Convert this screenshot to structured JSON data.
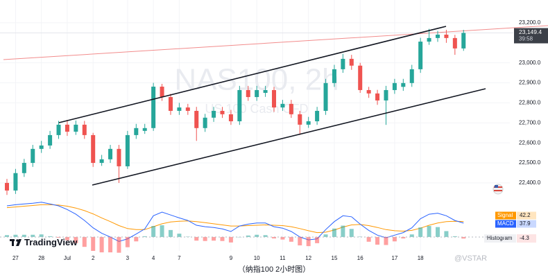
{
  "branding": "TradingView",
  "caption": "（纳指100 2小时图）",
  "watermark": "@VSTAR",
  "chart_data": [
    {
      "type": "candlestick",
      "title": "NAS100, 2h",
      "subtitle": "US 100 Cash CFD",
      "categories": [
        null,
        "27",
        null,
        null,
        "28",
        null,
        null,
        "Jul",
        null,
        null,
        "2",
        null,
        null,
        null,
        "3",
        null,
        null,
        "4",
        null,
        null,
        "7",
        null,
        null,
        null,
        null,
        null,
        "9",
        null,
        null,
        "10",
        null,
        null,
        "11",
        null,
        null,
        "12",
        null,
        null,
        "15",
        null,
        null,
        "16",
        null,
        null,
        null,
        "17",
        null,
        null,
        "18",
        null,
        null,
        null,
        null,
        null
      ],
      "open": [
        22400,
        22362,
        22449,
        22500,
        22570,
        22587,
        22639,
        22691,
        22656,
        22691,
        22639,
        22500,
        22518,
        22570,
        22483,
        22639,
        22660,
        22674,
        22881,
        22829,
        22760,
        22777,
        22760,
        22674,
        22726,
        22760,
        22743,
        22708,
        22864,
        22829,
        22850,
        22864,
        22777,
        22795,
        22743,
        22691,
        22708,
        22760,
        22899,
        22968,
        23020,
        22986,
        22864,
        22847,
        22812,
        22864,
        22880,
        22899,
        22968,
        23106,
        23124,
        23141,
        23124,
        23072
      ],
      "high": [
        22420,
        22470,
        22520,
        22590,
        22610,
        22660,
        22710,
        22715,
        22712,
        22710,
        22650,
        22540,
        22590,
        22590,
        22660,
        22695,
        22695,
        22900,
        22895,
        22845,
        22800,
        22795,
        22780,
        22745,
        22780,
        22780,
        22765,
        22885,
        22885,
        22885,
        22885,
        22880,
        22815,
        22815,
        22760,
        22730,
        22780,
        22920,
        22990,
        23045,
        23040,
        23000,
        22880,
        22865,
        22885,
        22920,
        22920,
        22990,
        23125,
        23170,
        23160,
        23165,
        23140,
        23165
      ],
      "low": [
        22340,
        22345,
        22430,
        22480,
        22550,
        22570,
        22620,
        22635,
        22640,
        22620,
        22480,
        22485,
        22500,
        22400,
        22470,
        22620,
        22645,
        22660,
        22810,
        22740,
        22740,
        22740,
        22610,
        22655,
        22705,
        22725,
        22690,
        22690,
        22810,
        22810,
        22830,
        22755,
        22760,
        22725,
        22640,
        22675,
        22690,
        22740,
        22880,
        22950,
        22965,
        22850,
        22825,
        22790,
        22690,
        22845,
        22860,
        22880,
        22950,
        23090,
        23105,
        23100,
        23040,
        23060
      ],
      "close": [
        22362,
        22449,
        22500,
        22570,
        22587,
        22639,
        22691,
        22656,
        22691,
        22639,
        22500,
        22518,
        22570,
        22483,
        22639,
        22674,
        22674,
        22881,
        22829,
        22760,
        22777,
        22760,
        22674,
        22726,
        22760,
        22743,
        22708,
        22864,
        22829,
        22864,
        22864,
        22777,
        22795,
        22743,
        22691,
        22708,
        22760,
        22899,
        22968,
        23020,
        22986,
        22864,
        22847,
        22812,
        22864,
        22899,
        22899,
        22968,
        23106,
        23124,
        23141,
        23124,
        23072,
        23149.4
      ],
      "up_color": "#26a69a",
      "down_color": "#ef5350",
      "ylim": [
        22327,
        23314
      ],
      "yticks": [
        {
          "value": 23200,
          "label": "23,200.0"
        },
        {
          "value": 23000,
          "label": "23,000.0"
        },
        {
          "value": 22900,
          "label": "22,900.0"
        },
        {
          "value": 22800,
          "label": "22,800.0"
        },
        {
          "value": 22700,
          "label": "22,700.0"
        },
        {
          "value": 22600,
          "label": "22,600.0"
        },
        {
          "value": 22500,
          "label": "22,500.0"
        },
        {
          "value": 22400,
          "label": "22,400.0"
        }
      ],
      "last_price": {
        "value": 23149.4,
        "label": "23,149.4"
      },
      "countdown": "39:58",
      "grid": true
    },
    {
      "type": "macd",
      "ylim": [
        -38,
        102
      ],
      "series": [
        {
          "name": "Signal",
          "color": "#ff9800",
          "values": [
            80,
            82,
            84,
            86,
            88,
            88,
            87,
            84,
            79,
            72,
            63,
            52,
            42,
            31,
            23,
            20,
            20,
            28,
            36,
            41,
            43,
            44,
            42,
            39,
            36,
            33,
            30,
            30,
            31,
            32,
            33,
            32,
            31,
            28,
            23,
            17,
            12,
            13,
            19,
            27,
            33,
            34,
            31,
            26,
            20,
            17,
            16,
            18,
            24,
            32,
            38,
            42,
            43,
            42.2
          ]
        },
        {
          "name": "MACD",
          "color": "#2962ff",
          "values": [
            85,
            88,
            90,
            92,
            95,
            90,
            85,
            75,
            62,
            45,
            25,
            10,
            0,
            -12,
            -5,
            8,
            22,
            58,
            68,
            60,
            52,
            45,
            32,
            28,
            26,
            22,
            15,
            30,
            35,
            38,
            38,
            28,
            24,
            15,
            0,
            -8,
            -5,
            20,
            42,
            58,
            55,
            35,
            18,
            5,
            -2,
            5,
            12,
            25,
            50,
            62,
            65,
            58,
            45,
            37.9
          ]
        },
        {
          "name": "Histogram",
          "color": "#26a69a",
          "down_color": "#ff5252",
          "values": [
            5,
            6,
            6,
            6,
            7,
            2,
            -2,
            -9,
            -17,
            -27,
            -38,
            -42,
            -42,
            -43,
            -28,
            -12,
            2,
            30,
            32,
            19,
            9,
            1,
            -10,
            -11,
            -10,
            -11,
            -15,
            0,
            4,
            6,
            5,
            -4,
            -7,
            -13,
            -23,
            -25,
            -17,
            7,
            23,
            31,
            22,
            1,
            -13,
            -21,
            -22,
            -12,
            -4,
            7,
            26,
            30,
            27,
            16,
            2,
            -4.3
          ]
        }
      ]
    }
  ]
}
